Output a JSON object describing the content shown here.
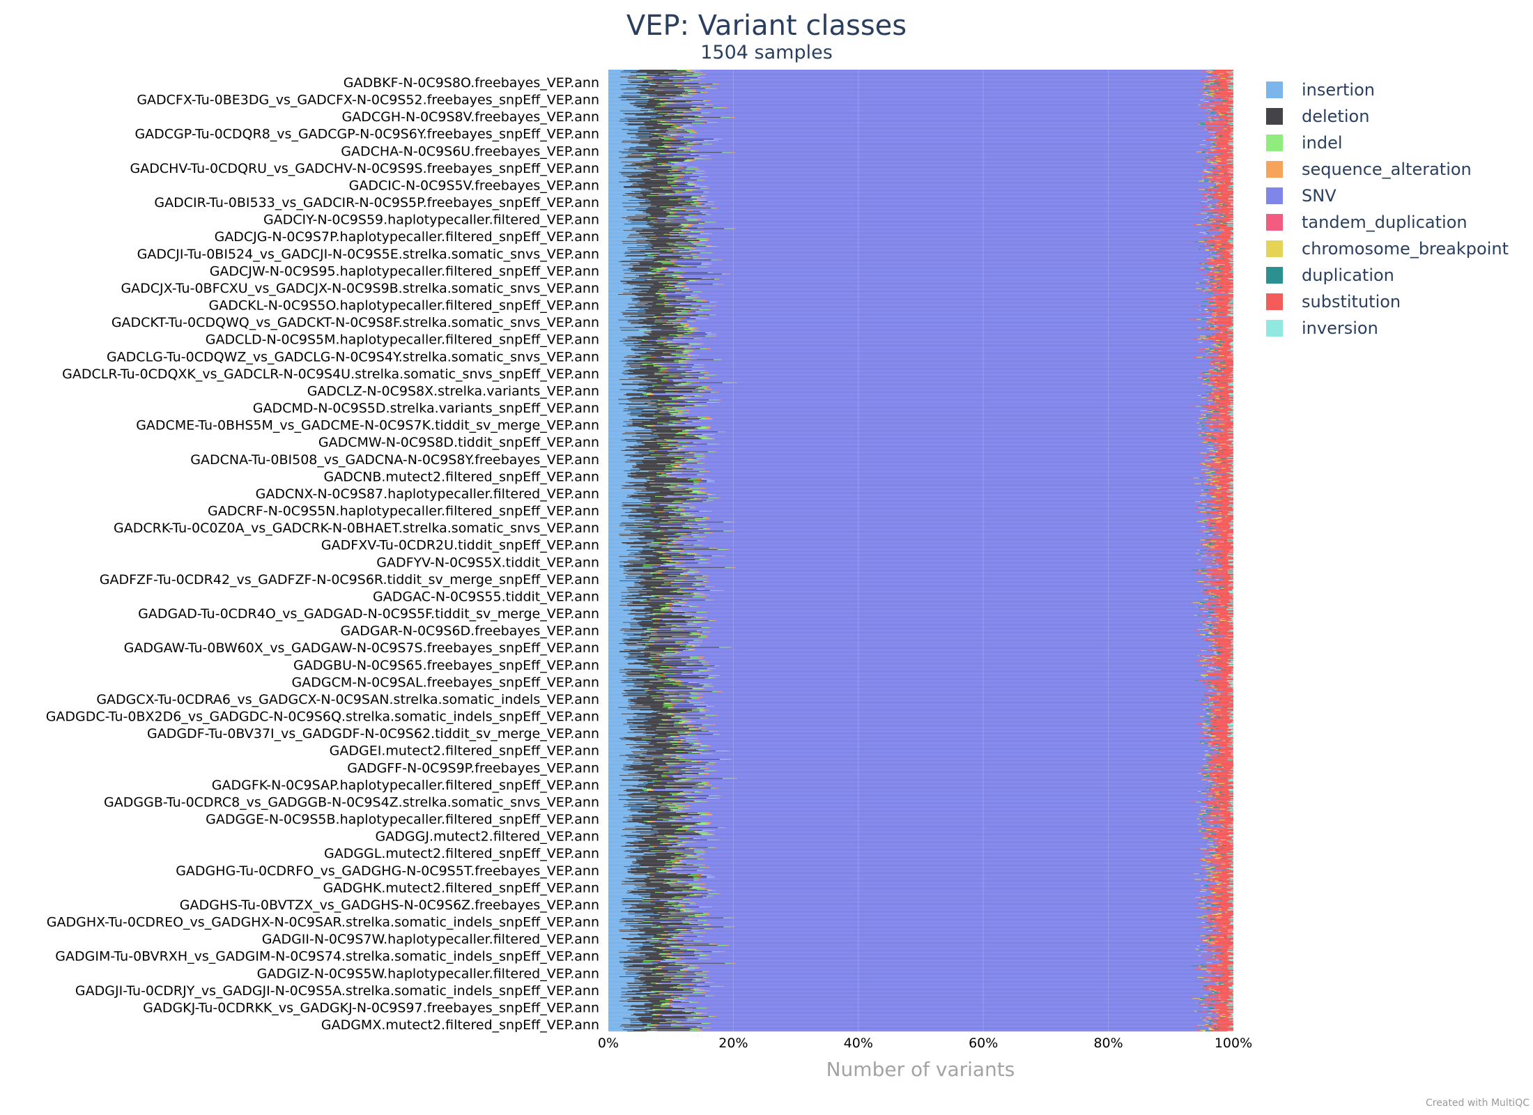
{
  "chart_data": {
    "type": "bar",
    "orientation": "horizontal",
    "stacked": true,
    "normalized_percent": true,
    "title": "VEP: Variant classes",
    "subtitle": "1504 samples",
    "xlabel": "Number of variants",
    "xlim": [
      0,
      100
    ],
    "xticks": [
      "0%",
      "20%",
      "40%",
      "60%",
      "80%",
      "100%"
    ],
    "grid": true,
    "legend_position": "right",
    "series": [
      {
        "name": "insertion",
        "color": "#7cb5ec",
        "approx_percent": 4.5
      },
      {
        "name": "deletion",
        "color": "#434348",
        "approx_percent": 6.0
      },
      {
        "name": "indel",
        "color": "#90ed7d",
        "approx_percent": 1.0
      },
      {
        "name": "sequence_alteration",
        "color": "#f7a35c",
        "approx_percent": 0.5
      },
      {
        "name": "SNV",
        "color": "#8085e9",
        "approx_percent": 83.5
      },
      {
        "name": "tandem_duplication",
        "color": "#f15c80",
        "approx_percent": 0.5
      },
      {
        "name": "chromosome_breakpoint",
        "color": "#e4d354",
        "approx_percent": 0.5
      },
      {
        "name": "duplication",
        "color": "#2b908f",
        "approx_percent": 0.5
      },
      {
        "name": "substitution",
        "color": "#f45b5b",
        "approx_percent": 2.5
      },
      {
        "name": "inversion",
        "color": "#91e8e1",
        "approx_percent": 0.5
      }
    ],
    "visible_row_labels": [
      "GADBKF-N-0C9S8O.freebayes_VEP.ann",
      "GADCFX-Tu-0BE3DG_vs_GADCFX-N-0C9S52.freebayes_snpEff_VEP.ann",
      "GADCGH-N-0C9S8V.freebayes_VEP.ann",
      "GADCGP-Tu-0CDQR8_vs_GADCGP-N-0C9S6Y.freebayes_snpEff_VEP.ann",
      "GADCHA-N-0C9S6U.freebayes_VEP.ann",
      "GADCHV-Tu-0CDQRU_vs_GADCHV-N-0C9S9S.freebayes_snpEff_VEP.ann",
      "GADCIC-N-0C9S5V.freebayes_VEP.ann",
      "GADCIR-Tu-0BI533_vs_GADCIR-N-0C9S5P.freebayes_snpEff_VEP.ann",
      "GADCIY-N-0C9S59.haplotypecaller.filtered_VEP.ann",
      "GADCJG-N-0C9S7P.haplotypecaller.filtered_snpEff_VEP.ann",
      "GADCJI-Tu-0BI524_vs_GADCJI-N-0C9S5E.strelka.somatic_snvs_VEP.ann",
      "GADCJW-N-0C9S95.haplotypecaller.filtered_snpEff_VEP.ann",
      "GADCJX-Tu-0BFCXU_vs_GADCJX-N-0C9S9B.strelka.somatic_snvs_VEP.ann",
      "GADCKL-N-0C9S5O.haplotypecaller.filtered_snpEff_VEP.ann",
      "GADCKT-Tu-0CDQWQ_vs_GADCKT-N-0C9S8F.strelka.somatic_snvs_VEP.ann",
      "GADCLD-N-0C9S5M.haplotypecaller.filtered_snpEff_VEP.ann",
      "GADCLG-Tu-0CDQWZ_vs_GADCLG-N-0C9S4Y.strelka.somatic_snvs_VEP.ann",
      "GADCLR-Tu-0CDQXK_vs_GADCLR-N-0C9S4U.strelka.somatic_snvs_snpEff_VEP.ann",
      "GADCLZ-N-0C9S8X.strelka.variants_VEP.ann",
      "GADCMD-N-0C9S5D.strelka.variants_snpEff_VEP.ann",
      "GADCME-Tu-0BHS5M_vs_GADCME-N-0C9S7K.tiddit_sv_merge_VEP.ann",
      "GADCMW-N-0C9S8D.tiddit_snpEff_VEP.ann",
      "GADCNA-Tu-0BI508_vs_GADCNA-N-0C9S8Y.freebayes_VEP.ann",
      "GADCNB.mutect2.filtered_snpEff_VEP.ann",
      "GADCNX-N-0C9S87.haplotypecaller.filtered_VEP.ann",
      "GADCRF-N-0C9S5N.haplotypecaller.filtered_snpEff_VEP.ann",
      "GADCRK-Tu-0C0Z0A_vs_GADCRK-N-0BHAET.strelka.somatic_snvs_VEP.ann",
      "GADFXV-Tu-0CDR2U.tiddit_snpEff_VEP.ann",
      "GADFYV-N-0C9S5X.tiddit_VEP.ann",
      "GADFZF-Tu-0CDR42_vs_GADFZF-N-0C9S6R.tiddit_sv_merge_snpEff_VEP.ann",
      "GADGAC-N-0C9S55.tiddit_VEP.ann",
      "GADGAD-Tu-0CDR4O_vs_GADGAD-N-0C9S5F.tiddit_sv_merge_VEP.ann",
      "GADGAR-N-0C9S6D.freebayes_VEP.ann",
      "GADGAW-Tu-0BW60X_vs_GADGAW-N-0C9S7S.freebayes_snpEff_VEP.ann",
      "GADGBU-N-0C9S65.freebayes_snpEff_VEP.ann",
      "GADGCM-N-0C9SAL.freebayes_snpEff_VEP.ann",
      "GADGCX-Tu-0CDRA6_vs_GADGCX-N-0C9SAN.strelka.somatic_indels_VEP.ann",
      "GADGDC-Tu-0BX2D6_vs_GADGDC-N-0C9S6Q.strelka.somatic_indels_snpEff_VEP.ann",
      "GADGDF-Tu-0BV37I_vs_GADGDF-N-0C9S62.tiddit_sv_merge_VEP.ann",
      "GADGEI.mutect2.filtered_snpEff_VEP.ann",
      "GADGFF-N-0C9S9P.freebayes_VEP.ann",
      "GADGFK-N-0C9SAP.haplotypecaller.filtered_snpEff_VEP.ann",
      "GADGGB-Tu-0CDRC8_vs_GADGGB-N-0C9S4Z.strelka.somatic_snvs_VEP.ann",
      "GADGGE-N-0C9S5B.haplotypecaller.filtered_snpEff_VEP.ann",
      "GADGGJ.mutect2.filtered_VEP.ann",
      "GADGGL.mutect2.filtered_snpEff_VEP.ann",
      "GADGHG-Tu-0CDRFO_vs_GADGHG-N-0C9S5T.freebayes_VEP.ann",
      "GADGHK.mutect2.filtered_snpEff_VEP.ann",
      "GADGHS-Tu-0BVTZX_vs_GADGHS-N-0C9S6Z.freebayes_VEP.ann",
      "GADGHX-Tu-0CDREO_vs_GADGHX-N-0C9SAR.strelka.somatic_indels_snpEff_VEP.ann",
      "GADGII-N-0C9S7W.haplotypecaller.filtered_VEP.ann",
      "GADGIM-Tu-0BVRXH_vs_GADGIM-N-0C9S74.strelka.somatic_indels_snpEff_VEP.ann",
      "GADGIZ-N-0C9S5W.haplotypecaller.filtered_VEP.ann",
      "GADGJI-Tu-0CDRJY_vs_GADGJI-N-0C9S5A.strelka.somatic_indels_snpEff_VEP.ann",
      "GADGKJ-Tu-0CDRKK_vs_GADGKJ-N-0C9S97.freebayes_snpEff_VEP.ann",
      "GADGMX.mutect2.filtered_snpEff_VEP.ann"
    ]
  },
  "footer": {
    "credit": "Created with MultiQC"
  }
}
